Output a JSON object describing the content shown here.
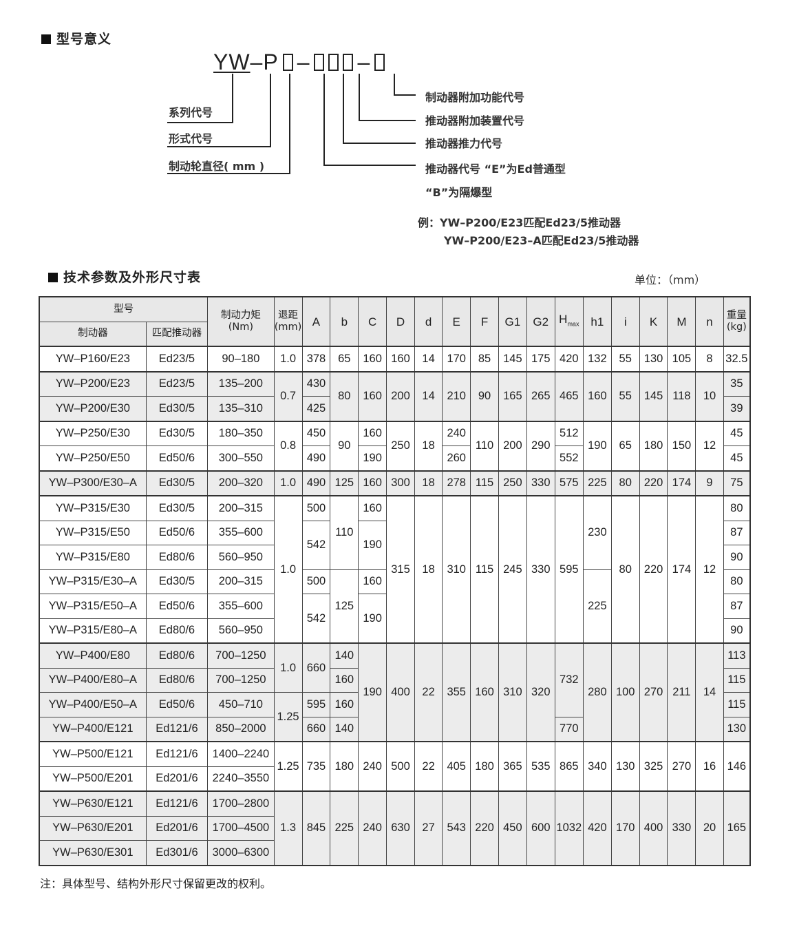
{
  "section1": {
    "title": "型号意义"
  },
  "model_code": {
    "series": "YW",
    "sep1": "–",
    "type_letter": "P",
    "sep2": "–",
    "sep3": "–"
  },
  "left_labels": [
    "系列代号",
    "形式代号",
    "制动轮直径( mm )"
  ],
  "right_labels": [
    "制动器附加功能代号",
    "推动器附加装置代号",
    "推动器推力代号",
    "推动器代号 “E”为Ed普通型",
    "“B”为隔爆型"
  ],
  "example": {
    "line1": "例：YW–P200/E23匹配Ed23/5推动器",
    "line2": "YW–P200/E23–A匹配Ed23/5推动器"
  },
  "section2": {
    "title": "技术参数及外形尺寸表",
    "unit": "单位：（mm）"
  },
  "table": {
    "header": {
      "model": "型号",
      "brake": "制动器",
      "actuator": "匹配推动器",
      "torque": "制动力矩",
      "torque_unit": "(Nm)",
      "retract": "退距",
      "retract_unit": "(mm)",
      "dims": [
        "A",
        "b",
        "C",
        "D",
        "d",
        "E",
        "F",
        "G1",
        "G2"
      ],
      "hmax": "H",
      "hmax_sub": "max",
      "dims2": [
        "h1",
        "i",
        "K",
        "M",
        "n"
      ],
      "weight": "重量",
      "weight_unit": "(kg)"
    },
    "rows": [
      [
        "YW–P160/E23",
        "Ed23/5",
        "90–180",
        "1.0",
        "378",
        "65",
        "160",
        "160",
        "14",
        "170",
        "85",
        "145",
        "175",
        "420",
        "132",
        "55",
        "130",
        "105",
        "8",
        "32.5"
      ],
      [
        "YW–P200/E23",
        "Ed23/5",
        "135–200",
        [
          "0.7",
          2
        ],
        "430",
        [
          "80",
          2
        ],
        [
          "160",
          2
        ],
        [
          "200",
          2
        ],
        [
          "14",
          2
        ],
        [
          "210",
          2
        ],
        [
          "90",
          2
        ],
        [
          "165",
          2
        ],
        [
          "265",
          2
        ],
        [
          "465",
          2
        ],
        [
          "160",
          2
        ],
        [
          "55",
          2
        ],
        [
          "145",
          2
        ],
        [
          "118",
          2
        ],
        [
          "10",
          2
        ],
        "35"
      ],
      [
        "YW–P200/E30",
        "Ed30/5",
        "135–310",
        "425",
        "39"
      ],
      [
        "YW–P250/E30",
        "Ed30/5",
        "180–350",
        [
          "0.8",
          2
        ],
        "450",
        [
          "90",
          2
        ],
        "160",
        [
          "250",
          2
        ],
        [
          "18",
          2
        ],
        "240",
        [
          "110",
          2
        ],
        [
          "200",
          2
        ],
        [
          "290",
          2
        ],
        "512",
        [
          "190",
          2
        ],
        [
          "65",
          2
        ],
        [
          "180",
          2
        ],
        [
          "150",
          2
        ],
        [
          "12",
          2
        ],
        "45"
      ],
      [
        "YW–P250/E50",
        "Ed50/6",
        "300–550",
        "490",
        "190",
        "260",
        "552",
        "45"
      ],
      [
        "YW–P300/E30–A",
        "Ed30/5",
        "200–320",
        "1.0",
        "490",
        "125",
        "160",
        "300",
        "18",
        "278",
        "115",
        "250",
        "330",
        "575",
        "225",
        "80",
        "220",
        "174",
        "9",
        "75"
      ],
      [
        "YW–P315/E30",
        "Ed30/5",
        "200–315",
        [
          "1.0",
          6
        ],
        "500",
        [
          "110",
          3
        ],
        "160",
        [
          "315",
          6
        ],
        [
          "18",
          6
        ],
        [
          "310",
          6
        ],
        [
          "115",
          6
        ],
        [
          "245",
          6
        ],
        [
          "330",
          6
        ],
        [
          "595",
          6
        ],
        [
          "230",
          3
        ],
        [
          "80",
          6
        ],
        [
          "220",
          6
        ],
        [
          "174",
          6
        ],
        [
          "12",
          6
        ],
        "80"
      ],
      [
        "YW–P315/E50",
        "Ed50/6",
        "355–600",
        [
          "542",
          2
        ],
        [
          "190",
          2
        ],
        "87"
      ],
      [
        "YW–P315/E80",
        "Ed80/6",
        "560–950",
        "90"
      ],
      [
        "YW–P315/E30–A",
        "Ed30/5",
        "200–315",
        "500",
        [
          "125",
          3
        ],
        "160",
        [
          "225",
          3
        ],
        "80"
      ],
      [
        "YW–P315/E50–A",
        "Ed50/6",
        "355–600",
        [
          "542",
          2
        ],
        [
          "190",
          2
        ],
        "87"
      ],
      [
        "YW–P315/E80–A",
        "Ed80/6",
        "560–950",
        "90"
      ],
      [
        "YW–P400/E80",
        "Ed80/6",
        "700–1250",
        [
          "1.0",
          2
        ],
        [
          "660",
          2
        ],
        "140",
        [
          "190",
          4
        ],
        [
          "400",
          4
        ],
        [
          "22",
          4
        ],
        [
          "355",
          4
        ],
        [
          "160",
          4
        ],
        [
          "310",
          4
        ],
        [
          "320",
          4
        ],
        [
          "732",
          3
        ],
        [
          "280",
          4
        ],
        [
          "100",
          4
        ],
        [
          "270",
          4
        ],
        [
          "211",
          4
        ],
        [
          "14",
          4
        ],
        "113"
      ],
      [
        "YW–P400/E80–A",
        "Ed80/6",
        "700–1250",
        "160",
        "115"
      ],
      [
        "YW–P400/E50–A",
        "Ed50/6",
        "450–710",
        [
          "1.25",
          2
        ],
        "595",
        "160",
        "115"
      ],
      [
        "YW–P400/E121",
        "Ed121/6",
        "850–2000",
        "660",
        "140",
        "770",
        "130"
      ],
      [
        "YW–P500/E121",
        "Ed121/6",
        "1400–2240",
        [
          "1.25",
          2
        ],
        [
          "735",
          2
        ],
        [
          "180",
          2
        ],
        [
          "240",
          2
        ],
        [
          "500",
          2
        ],
        [
          "22",
          2
        ],
        [
          "405",
          2
        ],
        [
          "180",
          2
        ],
        [
          "365",
          2
        ],
        [
          "535",
          2
        ],
        [
          "865",
          2
        ],
        [
          "340",
          2
        ],
        [
          "130",
          2
        ],
        [
          "325",
          2
        ],
        [
          "270",
          2
        ],
        [
          "16",
          2
        ],
        [
          "146",
          2
        ]
      ],
      [
        "YW–P500/E201",
        "Ed201/6",
        "2240–3550"
      ],
      [
        "YW–P630/E121",
        "Ed121/6",
        "1700–2800",
        [
          "1.3",
          3
        ],
        [
          "845",
          3
        ],
        [
          "225",
          3
        ],
        [
          "240",
          3
        ],
        [
          "630",
          3
        ],
        [
          "27",
          3
        ],
        [
          "543",
          3
        ],
        [
          "220",
          3
        ],
        [
          "450",
          3
        ],
        [
          "600",
          3
        ],
        [
          "1032",
          3
        ],
        [
          "420",
          3
        ],
        [
          "170",
          3
        ],
        [
          "400",
          3
        ],
        [
          "330",
          3
        ],
        [
          "20",
          3
        ],
        [
          "165",
          3
        ]
      ],
      [
        "YW–P630/E201",
        "Ed201/6",
        "1700–4500"
      ],
      [
        "YW–P630/E301",
        "Ed301/6",
        "3000–6300"
      ]
    ]
  },
  "note": "注：具体型号、结构外形尺寸保留更改的权利。"
}
